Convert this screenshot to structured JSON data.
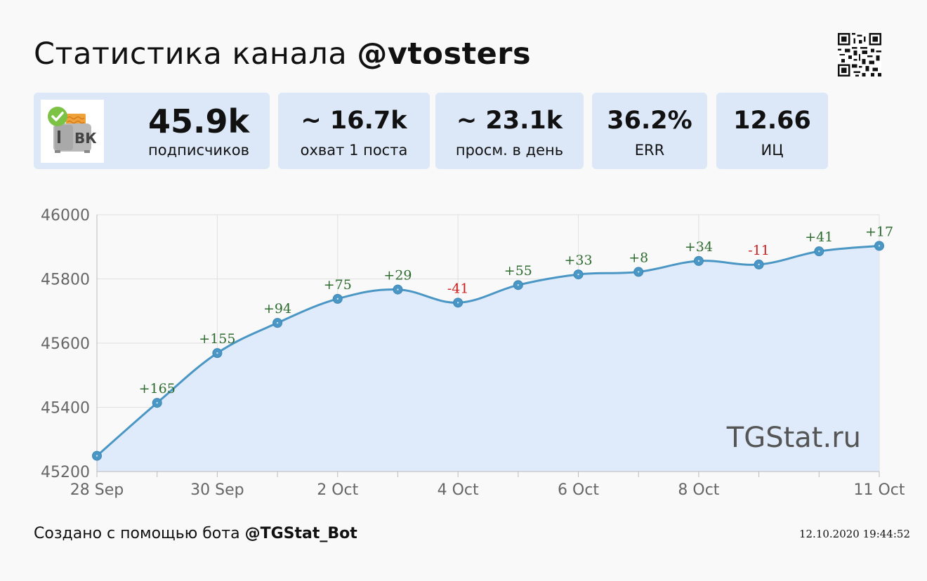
{
  "header": {
    "title_prefix": "Статистика канала",
    "channel": "@vtosters"
  },
  "stats": [
    {
      "value": "45.9k",
      "label": "подписчиков"
    },
    {
      "value": "~ 16.7k",
      "label": "охват 1 поста"
    },
    {
      "value": "~ 23.1k",
      "label": "просм. в день"
    },
    {
      "value": "36.2%",
      "label": "ERR"
    },
    {
      "value": "12.66",
      "label": "ИЦ"
    }
  ],
  "avatar": {
    "icon": "vk-toaster-verified-icon",
    "text": "ВК"
  },
  "chart_data": {
    "type": "area",
    "x": [
      "28 Sep",
      "29 Sep",
      "30 Sep",
      "1 Oct",
      "2 Oct",
      "3 Oct",
      "4 Oct",
      "5 Oct",
      "6 Oct",
      "7 Oct",
      "8 Oct",
      "9 Oct",
      "10 Oct",
      "11 Oct"
    ],
    "values": [
      45249,
      45414,
      45569,
      45663,
      45738,
      45767,
      45726,
      45781,
      45814,
      45822,
      45856,
      45845,
      45886,
      45903
    ],
    "deltas": [
      "",
      "+165",
      "+155",
      "+94",
      "+75",
      "+29",
      "-41",
      "+55",
      "+33",
      "+8",
      "+34",
      "-11",
      "+41",
      "+17"
    ],
    "x_ticks": [
      "28 Sep",
      "30 Sep",
      "2 Oct",
      "4 Oct",
      "6 Oct",
      "8 Oct",
      "11 Oct"
    ],
    "y_ticks": [
      "45200",
      "45400",
      "45600",
      "45800",
      "46000"
    ],
    "ylim": [
      45200,
      46000
    ],
    "grid": true,
    "colors": {
      "line": "#4a96c4",
      "fill": "#dfeafa",
      "positive": "#2e6b2e",
      "negative": "#cc1f1f",
      "grid": "#e0e0e0"
    }
  },
  "watermark": "TGStat.ru",
  "footer": {
    "prefix": "Создано с помощью бота",
    "bot": "@TGStat_Bot",
    "timestamp": "12.10.2020 19:44:52"
  }
}
